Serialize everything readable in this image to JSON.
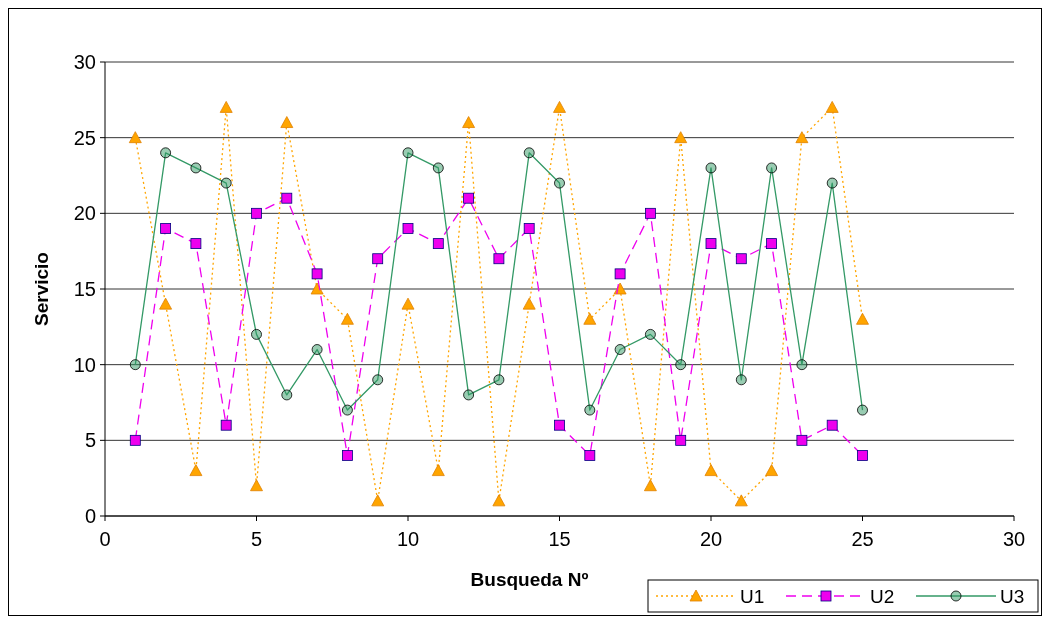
{
  "chart_data": {
    "type": "line",
    "xlabel": "Busqueda Nº",
    "ylabel": "Servicio",
    "x": [
      1,
      2,
      3,
      4,
      5,
      6,
      7,
      8,
      9,
      10,
      11,
      12,
      13,
      14,
      15,
      16,
      17,
      18,
      19,
      20,
      21,
      22,
      23,
      24,
      25
    ],
    "xlim": [
      0,
      30
    ],
    "xticks": [
      0,
      5,
      10,
      15,
      20,
      25,
      30
    ],
    "ylim": [
      0,
      30
    ],
    "yticks": [
      0,
      5,
      10,
      15,
      20,
      25,
      30
    ],
    "grid": "y",
    "legend": "bottom right",
    "series": [
      {
        "name": "U1",
        "color": "#ffa500",
        "marker": "triangle",
        "line_style": "dotted",
        "values": [
          25,
          14,
          3,
          27,
          2,
          26,
          15,
          13,
          1,
          14,
          3,
          26,
          1,
          14,
          27,
          13,
          15,
          2,
          25,
          3,
          1,
          3,
          25,
          27,
          13
        ]
      },
      {
        "name": "U2",
        "color": "#ee00ee",
        "marker": "square",
        "line_style": "dashed",
        "values": [
          5,
          19,
          18,
          6,
          20,
          21,
          16,
          4,
          17,
          19,
          18,
          21,
          17,
          19,
          6,
          4,
          16,
          20,
          5,
          18,
          17,
          18,
          5,
          6,
          4
        ]
      },
      {
        "name": "U3",
        "color": "#339966",
        "marker": "circle",
        "line_style": "solid",
        "values": [
          10,
          24,
          23,
          22,
          12,
          8,
          11,
          7,
          9,
          24,
          23,
          8,
          9,
          24,
          22,
          7,
          11,
          12,
          10,
          23,
          9,
          23,
          10,
          22,
          7
        ]
      }
    ]
  }
}
